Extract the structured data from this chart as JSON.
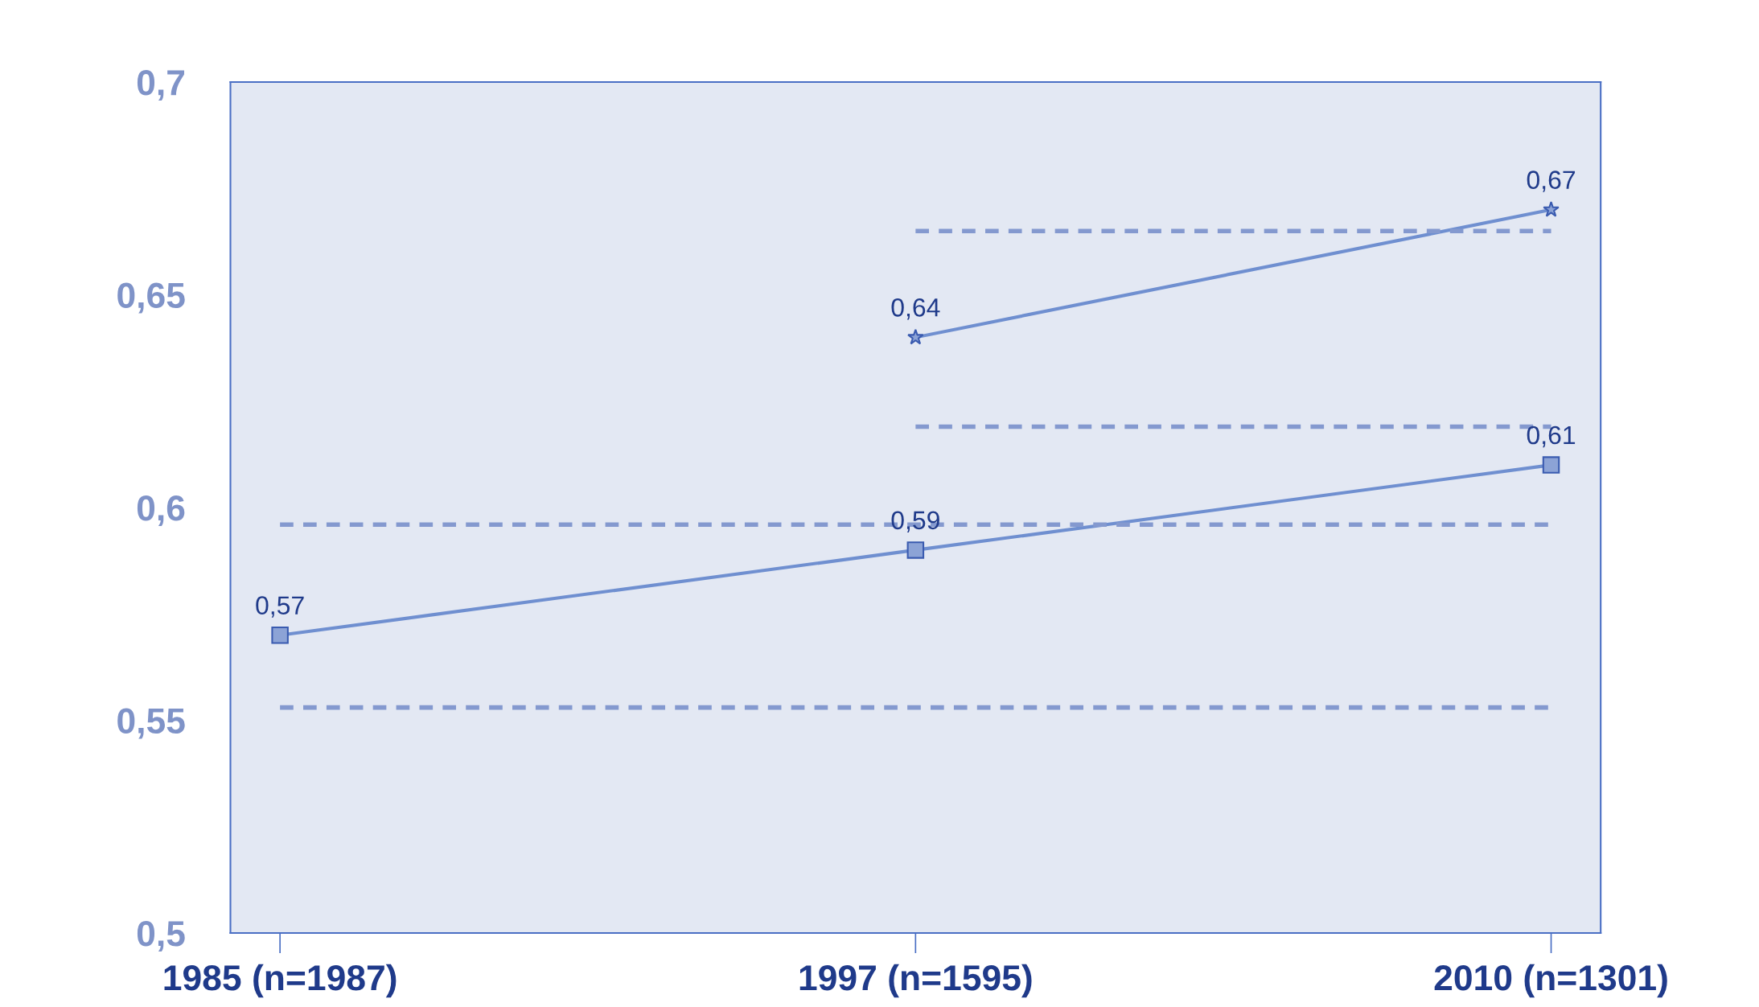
{
  "chart_data": {
    "type": "line",
    "categories": [
      "1985 (n=1987)",
      "1997 (n=1595)",
      "2010 (n=1301)"
    ],
    "ylim": [
      0.5,
      0.7
    ],
    "yticks": [
      {
        "value": 0.5,
        "label": "0,5"
      },
      {
        "value": 0.55,
        "label": "0,55"
      },
      {
        "value": 0.6,
        "label": "0,6"
      },
      {
        "value": 0.65,
        "label": "0,65"
      },
      {
        "value": 0.7,
        "label": "0,7"
      }
    ],
    "grid": false,
    "legend": false,
    "series": [
      {
        "color": "#6f8fd0",
        "marker": "square",
        "line_style": "solid",
        "values": [
          0.57,
          0.59,
          0.61
        ],
        "value_labels": [
          "0,57",
          "0,59",
          "0,61"
        ]
      },
      {
        "color": "#6f8fd0",
        "marker": "star",
        "line_style": "solid",
        "values": [
          null,
          0.64,
          0.67
        ],
        "value_labels": [
          null,
          "0,64",
          "0,67"
        ]
      },
      {
        "color": "#8499cf",
        "marker": "none",
        "line_style": "dashed",
        "values": [
          0.553,
          0.553,
          0.553
        ]
      },
      {
        "color": "#8499cf",
        "marker": "none",
        "line_style": "dashed",
        "values": [
          0.596,
          0.596,
          0.596
        ]
      },
      {
        "color": "#8499cf",
        "marker": "none",
        "line_style": "dashed",
        "values": [
          null,
          0.619,
          0.619
        ]
      },
      {
        "color": "#8499cf",
        "marker": "none",
        "line_style": "dashed",
        "values": [
          null,
          0.665,
          0.665
        ]
      }
    ]
  }
}
